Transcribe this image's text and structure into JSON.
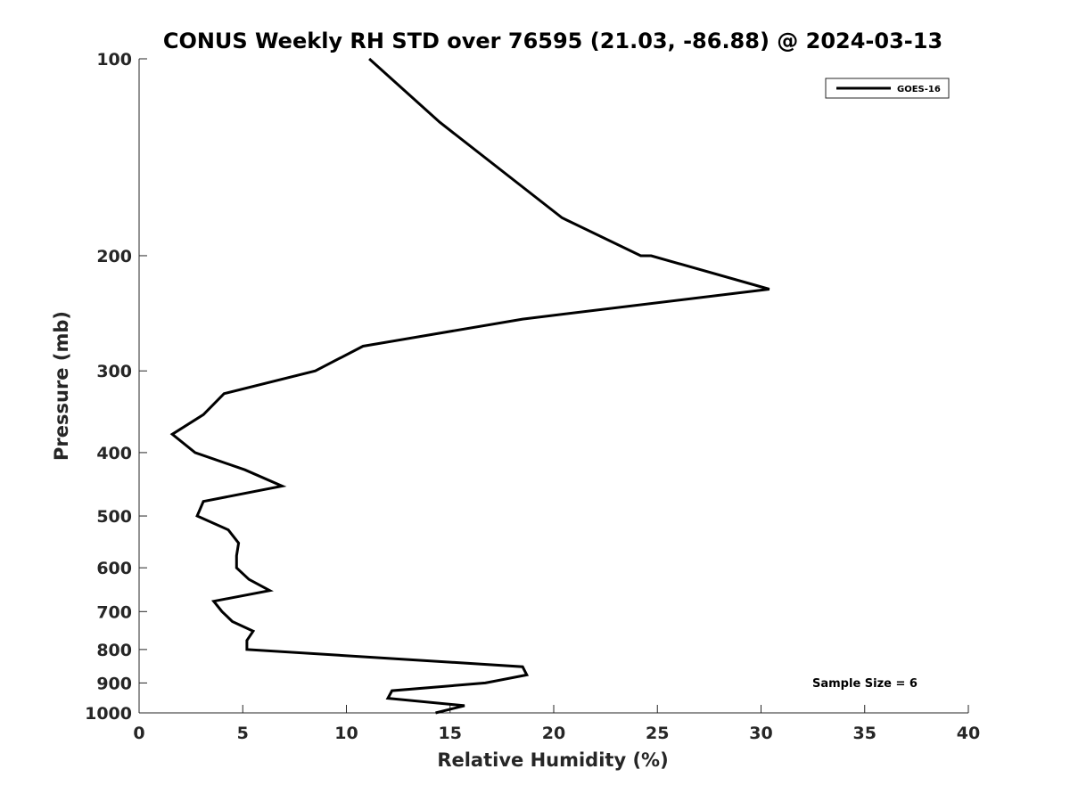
{
  "chart_data": {
    "type": "line",
    "title": "CONUS Weekly RH STD over 76595 (21.03, -86.88) @ 2024-03-13",
    "xlabel": "Relative Humidity (%)",
    "ylabel": "Pressure (mb)",
    "xlim": [
      0,
      40
    ],
    "ylim": [
      100,
      1000
    ],
    "y_scale": "log",
    "y_reversed": true,
    "xticks": [
      0,
      5,
      10,
      15,
      20,
      25,
      30,
      35,
      40
    ],
    "yticks": [
      100,
      200,
      300,
      400,
      500,
      600,
      700,
      800,
      900,
      1000
    ],
    "grid": false,
    "legend_position": "top-right",
    "series": [
      {
        "name": "GOES-16",
        "color": "#000000",
        "points": [
          {
            "x": 11.1,
            "y": 100
          },
          {
            "x": 14.5,
            "y": 125
          },
          {
            "x": 20.4,
            "y": 175
          },
          {
            "x": 24.2,
            "y": 200
          },
          {
            "x": 24.7,
            "y": 200
          },
          {
            "x": 30.4,
            "y": 225
          },
          {
            "x": 18.5,
            "y": 250
          },
          {
            "x": 10.8,
            "y": 275
          },
          {
            "x": 8.5,
            "y": 300
          },
          {
            "x": 4.1,
            "y": 325
          },
          {
            "x": 3.1,
            "y": 350
          },
          {
            "x": 1.6,
            "y": 375
          },
          {
            "x": 2.7,
            "y": 400
          },
          {
            "x": 5.1,
            "y": 425
          },
          {
            "x": 6.9,
            "y": 450
          },
          {
            "x": 3.1,
            "y": 475
          },
          {
            "x": 2.8,
            "y": 500
          },
          {
            "x": 4.3,
            "y": 525
          },
          {
            "x": 4.8,
            "y": 550
          },
          {
            "x": 4.7,
            "y": 575
          },
          {
            "x": 4.7,
            "y": 600
          },
          {
            "x": 5.3,
            "y": 625
          },
          {
            "x": 6.3,
            "y": 650
          },
          {
            "x": 3.6,
            "y": 675
          },
          {
            "x": 4.0,
            "y": 700
          },
          {
            "x": 4.5,
            "y": 725
          },
          {
            "x": 5.5,
            "y": 750
          },
          {
            "x": 5.2,
            "y": 775
          },
          {
            "x": 5.2,
            "y": 800
          },
          {
            "x": 12.0,
            "y": 825
          },
          {
            "x": 18.5,
            "y": 850
          },
          {
            "x": 18.7,
            "y": 875
          },
          {
            "x": 16.7,
            "y": 900
          },
          {
            "x": 12.2,
            "y": 925
          },
          {
            "x": 12.0,
            "y": 950
          },
          {
            "x": 15.7,
            "y": 975
          },
          {
            "x": 14.3,
            "y": 1000
          }
        ]
      }
    ],
    "annotations": [
      {
        "text": "Sample Size = 6"
      }
    ]
  }
}
